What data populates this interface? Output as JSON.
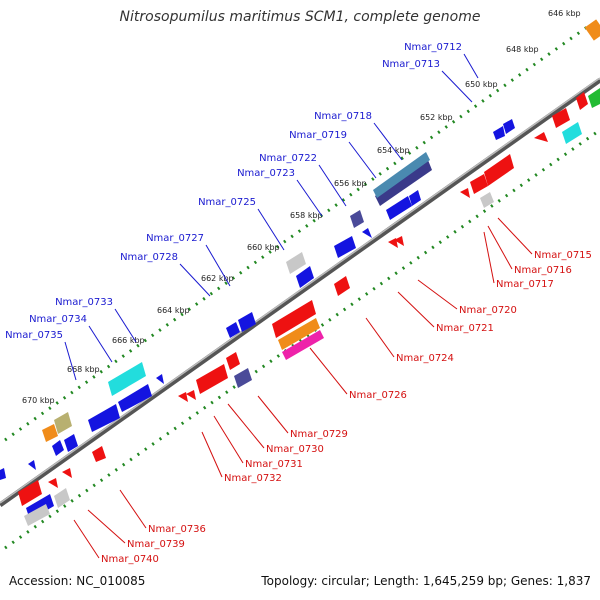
{
  "title": "Nitrosopumilus maritimus SCM1, complete genome",
  "accession": "Accession: NC_010085",
  "topology": "Topology: circular; Length: 1,645,259 bp; Genes: 1,837",
  "colors": {
    "upper_label": "#1a1ad0",
    "lower_label": "#d41010",
    "tick": "#228822",
    "backbone": "#888888"
  },
  "kbp_ticks": [
    "646 kbp",
    "648 kbp",
    "650 kbp",
    "652 kbp",
    "654 kbp",
    "656 kbp",
    "658 kbp",
    "660 kbp",
    "662 kbp",
    "664 kbp",
    "666 kbp",
    "668 kbp",
    "670 kbp"
  ],
  "upper_genes": [
    "Nmar_0712",
    "Nmar_0713",
    "Nmar_0718",
    "Nmar_0719",
    "Nmar_0722",
    "Nmar_0723",
    "Nmar_0725",
    "Nmar_0727",
    "Nmar_0728",
    "Nmar_0733",
    "Nmar_0734",
    "Nmar_0735"
  ],
  "lower_genes": [
    "Nmar_0715",
    "Nmar_0716",
    "Nmar_0717",
    "Nmar_0720",
    "Nmar_0721",
    "Nmar_0724",
    "Nmar_0726",
    "Nmar_0729",
    "Nmar_0730",
    "Nmar_0731",
    "Nmar_0732",
    "Nmar_0736",
    "Nmar_0739",
    "Nmar_0740"
  ]
}
